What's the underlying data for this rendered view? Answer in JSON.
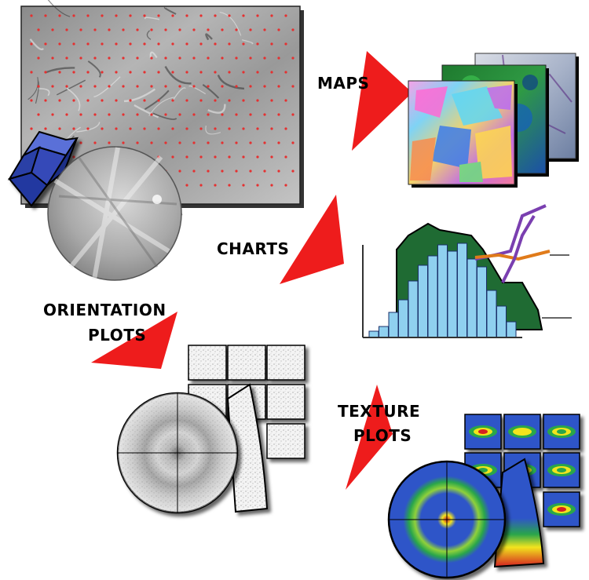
{
  "labels": {
    "maps": "MAPS",
    "charts": "CHARTS",
    "orientation_line1": "ORIENTATION",
    "orientation_line2": "PLOTS",
    "texture_line1": "TEXTURE",
    "texture_line2": "PLOTS"
  },
  "colors": {
    "arrow": "#ee1c1c",
    "hex_crystal": "#2a3fa6",
    "histogram_bar": "#8fd0ef",
    "histogram_area": "#1f6b33",
    "line_purple": "#7a3fb0",
    "line_orange": "#e07b1a",
    "texture_background": "#2f55c8"
  },
  "icons": {
    "micrograph": "sem-micrograph-icon",
    "crystal": "hexagonal-prism-icon",
    "pattern": "kikuchi-pattern-icon"
  }
}
